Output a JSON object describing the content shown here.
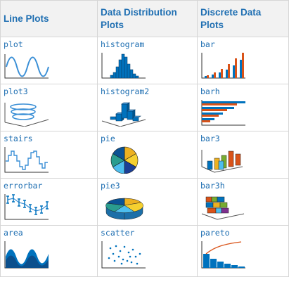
{
  "headers": [
    "Line Plots",
    "Data Distribution Plots",
    "Discrete Data Plots"
  ],
  "rows": [
    [
      {
        "name": "plot",
        "icon": "plot-icon"
      },
      {
        "name": "histogram",
        "icon": "histogram-icon"
      },
      {
        "name": "bar",
        "icon": "bar-icon"
      }
    ],
    [
      {
        "name": "plot3",
        "icon": "plot3-icon"
      },
      {
        "name": "histogram2",
        "icon": "histogram2-icon"
      },
      {
        "name": "barh",
        "icon": "barh-icon"
      }
    ],
    [
      {
        "name": "stairs",
        "icon": "stairs-icon"
      },
      {
        "name": "pie",
        "icon": "pie-icon"
      },
      {
        "name": "bar3",
        "icon": "bar3-icon"
      }
    ],
    [
      {
        "name": "errorbar",
        "icon": "errorbar-icon"
      },
      {
        "name": "pie3",
        "icon": "pie3-icon"
      },
      {
        "name": "bar3h",
        "icon": "bar3h-icon"
      }
    ],
    [
      {
        "name": "area",
        "icon": "area-icon"
      },
      {
        "name": "scatter",
        "icon": "scatter-icon"
      },
      {
        "name": "pareto",
        "icon": "pareto-icon"
      }
    ]
  ],
  "colors": {
    "link": "#1f6fb2",
    "primary": "#0072bd",
    "secondary": "#d95319",
    "tertiary": "#edb120",
    "green": "#77ac30",
    "cyan": "#4dbeee"
  }
}
